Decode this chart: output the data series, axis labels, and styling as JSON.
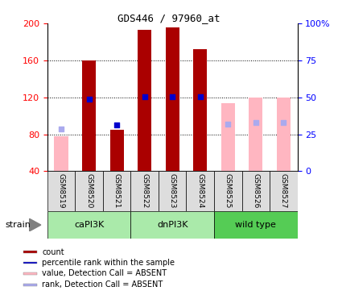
{
  "title": "GDS446 / 97960_at",
  "samples": [
    "GSM8519",
    "GSM8520",
    "GSM8521",
    "GSM8522",
    "GSM8523",
    "GSM8524",
    "GSM8525",
    "GSM8526",
    "GSM8527"
  ],
  "strains": [
    {
      "label": "caPI3K",
      "start": 0,
      "end": 3,
      "color": "#AAEAAA"
    },
    {
      "label": "dnPI3K",
      "start": 3,
      "end": 6,
      "color": "#AAEAAA"
    },
    {
      "label": "wild type",
      "start": 6,
      "end": 9,
      "color": "#55CC55"
    }
  ],
  "ylim_left": [
    40,
    200
  ],
  "ylim_right": [
    0,
    100
  ],
  "yticks_left": [
    40,
    80,
    120,
    160,
    200
  ],
  "yticks_right": [
    0,
    25,
    50,
    75,
    100
  ],
  "ytick_labels_right": [
    "0",
    "25",
    "50",
    "75",
    "100%"
  ],
  "grid_values": [
    80,
    120,
    160
  ],
  "bar_color_dark": "#AA0000",
  "bar_color_light": "#FFB6C1",
  "dot_color_dark": "#0000CC",
  "dot_color_light": "#AAAAEE",
  "bars_dark": [
    null,
    160,
    85,
    193,
    196,
    172,
    null,
    null,
    null
  ],
  "bars_light": [
    78,
    null,
    null,
    null,
    null,
    null,
    114,
    120,
    120
  ],
  "dots_dark": [
    null,
    118,
    90,
    121,
    121,
    121,
    null,
    null,
    null
  ],
  "dots_light": [
    86,
    null,
    null,
    null,
    null,
    null,
    91,
    93,
    93
  ],
  "legend_items": [
    {
      "color": "#AA0000",
      "label": "count"
    },
    {
      "color": "#0000CC",
      "label": "percentile rank within the sample"
    },
    {
      "color": "#FFB6C1",
      "label": "value, Detection Call = ABSENT"
    },
    {
      "color": "#AAAAEE",
      "label": "rank, Detection Call = ABSENT"
    }
  ],
  "strain_label": "strain",
  "background_color": "#FFFFFF"
}
